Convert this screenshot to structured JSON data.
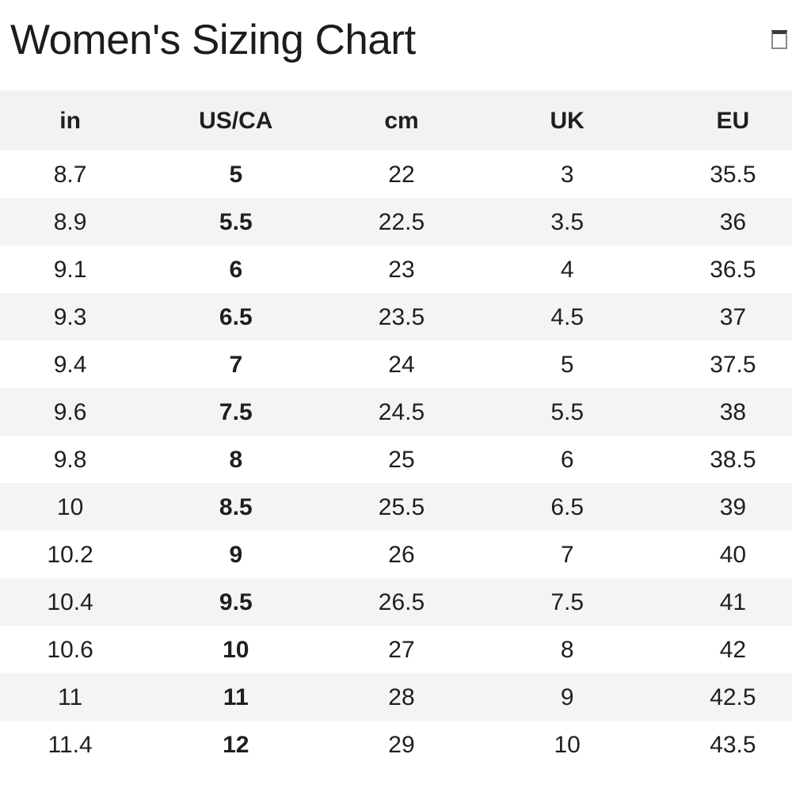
{
  "page": {
    "title": "Women's Sizing Chart"
  },
  "header": {
    "corner_icon": "placeholder-square-glyph"
  },
  "table": {
    "columns": [
      "in",
      "US/CA",
      "cm",
      "UK",
      "EU"
    ],
    "bold_column": "US/CA",
    "rows": [
      [
        "8.7",
        "5",
        "22",
        "3",
        "35.5"
      ],
      [
        "8.9",
        "5.5",
        "22.5",
        "3.5",
        "36"
      ],
      [
        "9.1",
        "6",
        "23",
        "4",
        "36.5"
      ],
      [
        "9.3",
        "6.5",
        "23.5",
        "4.5",
        "37"
      ],
      [
        "9.4",
        "7",
        "24",
        "5",
        "37.5"
      ],
      [
        "9.6",
        "7.5",
        "24.5",
        "5.5",
        "38"
      ],
      [
        "9.8",
        "8",
        "25",
        "6",
        "38.5"
      ],
      [
        "10",
        "8.5",
        "25.5",
        "6.5",
        "39"
      ],
      [
        "10.2",
        "9",
        "26",
        "7",
        "40"
      ],
      [
        "10.4",
        "9.5",
        "26.5",
        "7.5",
        "41"
      ],
      [
        "10.6",
        "10",
        "27",
        "8",
        "42"
      ],
      [
        "11",
        "11",
        "28",
        "9",
        "42.5"
      ],
      [
        "11.4",
        "12",
        "29",
        "10",
        "43.5"
      ]
    ]
  },
  "colors": {
    "background": "#ffffff",
    "header_row_bg": "#f2f2f2",
    "stripe_row_bg": "#f4f4f4",
    "title_text": "#1c1c1c",
    "body_text": "#1f1f1f"
  }
}
